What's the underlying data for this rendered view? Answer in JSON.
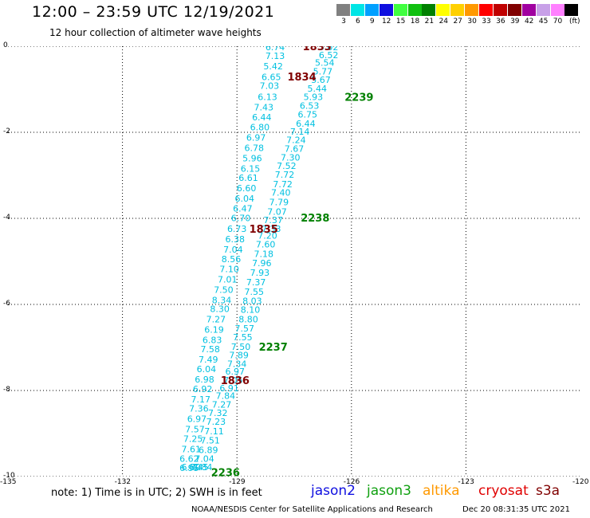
{
  "header": {
    "title": "12:00 – 23:59 UTC 12/19/2021",
    "subtitle": "12 hour collection of altimeter wave heights"
  },
  "colorbar": {
    "unit": "(ft)",
    "cells": [
      {
        "label": "3",
        "color": "#808080"
      },
      {
        "label": "6",
        "color": "#00e5e5"
      },
      {
        "label": "9",
        "color": "#00a0ff"
      },
      {
        "label": "12",
        "color": "#1010e0"
      },
      {
        "label": "15",
        "color": "#40ff40"
      },
      {
        "label": "18",
        "color": "#10c010"
      },
      {
        "label": "21",
        "color": "#008000"
      },
      {
        "label": "24",
        "color": "#ffff00"
      },
      {
        "label": "27",
        "color": "#ffd000"
      },
      {
        "label": "30",
        "color": "#ff9900"
      },
      {
        "label": "33",
        "color": "#ff0000"
      },
      {
        "label": "36",
        "color": "#c00000"
      },
      {
        "label": "39",
        "color": "#800000"
      },
      {
        "label": "42",
        "color": "#a000a0"
      },
      {
        "label": "45",
        "color": "#c8a0e8"
      },
      {
        "label": "70",
        "color": "#ff80ff"
      },
      {
        "label": "",
        "color": "#000000"
      }
    ]
  },
  "axes": {
    "x_ticks": [
      "-135",
      "-132",
      "-129",
      "-126",
      "-123",
      "-120"
    ],
    "y_ticks": [
      "0",
      "-2",
      "-4",
      "-6",
      "-8",
      "-10"
    ],
    "x_range": [
      -135,
      -120
    ],
    "y_range": [
      -10,
      0
    ]
  },
  "tracks": [
    {
      "color": "#00c0e0",
      "points": [
        {
          "x": -128.0,
          "y": -0.02,
          "label": "6.74"
        },
        {
          "x": -128.0,
          "y": -0.22,
          "label": "7.13"
        },
        {
          "x": -128.05,
          "y": -0.46,
          "label": "5.42"
        },
        {
          "x": -128.1,
          "y": -0.71,
          "label": "6.65"
        },
        {
          "x": -128.15,
          "y": -0.92,
          "label": "7.03"
        },
        {
          "x": -128.2,
          "y": -1.18,
          "label": "6.13"
        },
        {
          "x": -128.3,
          "y": -1.42,
          "label": "7.43"
        },
        {
          "x": -128.35,
          "y": -1.65,
          "label": "6.44"
        },
        {
          "x": -128.4,
          "y": -1.88,
          "label": "6.80"
        },
        {
          "x": -128.5,
          "y": -2.12,
          "label": "6.97"
        },
        {
          "x": -128.55,
          "y": -2.36,
          "label": "6.78"
        },
        {
          "x": -128.6,
          "y": -2.6,
          "label": "5.96"
        },
        {
          "x": -128.65,
          "y": -2.84,
          "label": "6.15"
        },
        {
          "x": -128.7,
          "y": -3.06,
          "label": "6.61"
        },
        {
          "x": -128.75,
          "y": -3.3,
          "label": "6.60"
        },
        {
          "x": -128.8,
          "y": -3.54,
          "label": "6.04"
        },
        {
          "x": -128.85,
          "y": -3.77,
          "label": "6.47"
        },
        {
          "x": -128.9,
          "y": -3.99,
          "label": "6.70"
        },
        {
          "x": -129.0,
          "y": -4.24,
          "label": "6.73"
        },
        {
          "x": -129.05,
          "y": -4.48,
          "label": "6.38"
        },
        {
          "x": -129.1,
          "y": -4.72,
          "label": "7.04"
        },
        {
          "x": -129.15,
          "y": -4.94,
          "label": "8.56"
        },
        {
          "x": -129.2,
          "y": -5.18,
          "label": "7.10"
        },
        {
          "x": -129.25,
          "y": -5.42,
          "label": "7.01"
        },
        {
          "x": -129.35,
          "y": -5.66,
          "label": "7.50"
        },
        {
          "x": -129.4,
          "y": -5.9,
          "label": "8.34"
        },
        {
          "x": -129.45,
          "y": -6.1,
          "label": "8.30"
        },
        {
          "x": -129.55,
          "y": -6.34,
          "label": "7.27"
        },
        {
          "x": -129.6,
          "y": -6.58,
          "label": "6.19"
        },
        {
          "x": -129.65,
          "y": -6.82,
          "label": "6.83"
        },
        {
          "x": -129.7,
          "y": -7.04,
          "label": "7.58"
        },
        {
          "x": -129.75,
          "y": -7.28,
          "label": "7.49"
        },
        {
          "x": -129.8,
          "y": -7.5,
          "label": "6.04"
        },
        {
          "x": -129.85,
          "y": -7.74,
          "label": "6.98"
        },
        {
          "x": -129.9,
          "y": -7.96,
          "label": "6.92"
        },
        {
          "x": -129.95,
          "y": -8.2,
          "label": "7.17"
        },
        {
          "x": -130.0,
          "y": -8.42,
          "label": "7.36"
        },
        {
          "x": -130.05,
          "y": -8.66,
          "label": "6.97"
        },
        {
          "x": -130.1,
          "y": -8.9,
          "label": "7.57"
        },
        {
          "x": -130.15,
          "y": -9.12,
          "label": "7.25"
        },
        {
          "x": -130.2,
          "y": -9.36,
          "label": "7.61"
        },
        {
          "x": -130.25,
          "y": -9.58,
          "label": "6.62"
        },
        {
          "x": -130.25,
          "y": -9.8,
          "label": "6.95"
        }
      ]
    },
    {
      "color": "#00c0e0",
      "points": [
        {
          "x": -126.6,
          "y": -0.02,
          "label": "5.02"
        },
        {
          "x": -126.6,
          "y": -0.2,
          "label": "6.52"
        },
        {
          "x": -126.7,
          "y": -0.38,
          "label": "5.54"
        },
        {
          "x": -126.75,
          "y": -0.58,
          "label": "5.77"
        },
        {
          "x": -126.8,
          "y": -0.78,
          "label": "5.67"
        },
        {
          "x": -126.9,
          "y": -0.98,
          "label": "5.44"
        },
        {
          "x": -127.0,
          "y": -1.18,
          "label": "5.93"
        },
        {
          "x": -127.1,
          "y": -1.38,
          "label": "6.53"
        },
        {
          "x": -127.15,
          "y": -1.58,
          "label": "6.75"
        },
        {
          "x": -127.2,
          "y": -1.8,
          "label": "6.44"
        },
        {
          "x": -127.35,
          "y": -1.98,
          "label": "7.14"
        },
        {
          "x": -127.45,
          "y": -2.18,
          "label": "7.24"
        },
        {
          "x": -127.5,
          "y": -2.38,
          "label": "7.67"
        },
        {
          "x": -127.6,
          "y": -2.58,
          "label": "7.30"
        },
        {
          "x": -127.7,
          "y": -2.78,
          "label": "7.52"
        },
        {
          "x": -127.75,
          "y": -2.98,
          "label": "7.72"
        },
        {
          "x": -127.8,
          "y": -3.2,
          "label": "7.72"
        },
        {
          "x": -127.85,
          "y": -3.4,
          "label": "7.40"
        },
        {
          "x": -127.9,
          "y": -3.62,
          "label": "7.79"
        },
        {
          "x": -127.95,
          "y": -3.84,
          "label": "7.07"
        },
        {
          "x": -128.05,
          "y": -4.04,
          "label": "7.37"
        },
        {
          "x": -128.1,
          "y": -4.24,
          "label": "7.33"
        },
        {
          "x": -128.2,
          "y": -4.4,
          "label": "7.20"
        },
        {
          "x": -128.25,
          "y": -4.6,
          "label": "7.60"
        },
        {
          "x": -128.3,
          "y": -4.82,
          "label": "7.18"
        },
        {
          "x": -128.35,
          "y": -5.04,
          "label": "7.96"
        },
        {
          "x": -128.4,
          "y": -5.26,
          "label": "7.93"
        },
        {
          "x": -128.5,
          "y": -5.48,
          "label": "7.37"
        },
        {
          "x": -128.55,
          "y": -5.7,
          "label": "7.55"
        },
        {
          "x": -128.6,
          "y": -5.92,
          "label": "8.03"
        },
        {
          "x": -128.65,
          "y": -6.12,
          "label": "8.10"
        },
        {
          "x": -128.7,
          "y": -6.34,
          "label": "8.80"
        },
        {
          "x": -128.8,
          "y": -6.56,
          "label": "7.57"
        },
        {
          "x": -128.85,
          "y": -6.76,
          "label": "7.55"
        },
        {
          "x": -128.9,
          "y": -6.98,
          "label": "7.50"
        },
        {
          "x": -128.95,
          "y": -7.18,
          "label": "7.89"
        },
        {
          "x": -129.0,
          "y": -7.38,
          "label": "7.34"
        },
        {
          "x": -129.05,
          "y": -7.56,
          "label": "6.97"
        },
        {
          "x": -129.1,
          "y": -7.76,
          "label": "7.05"
        },
        {
          "x": -129.2,
          "y": -7.94,
          "label": "6.91"
        },
        {
          "x": -129.3,
          "y": -8.12,
          "label": "7.84"
        },
        {
          "x": -129.4,
          "y": -8.32,
          "label": "7.27"
        },
        {
          "x": -129.5,
          "y": -8.52,
          "label": "7.32"
        },
        {
          "x": -129.55,
          "y": -8.72,
          "label": "7.23"
        },
        {
          "x": -129.6,
          "y": -8.94,
          "label": "7.11"
        },
        {
          "x": -129.7,
          "y": -9.16,
          "label": "7.51"
        },
        {
          "x": -129.75,
          "y": -9.38,
          "label": "6.89"
        },
        {
          "x": -129.85,
          "y": -9.58,
          "label": "7.04"
        },
        {
          "x": -129.9,
          "y": -9.78,
          "label": "7.84"
        }
      ]
    }
  ],
  "track_tail_labels": [
    {
      "x": -130.2,
      "y": -9.78,
      "label": "6.30",
      "color": "#00c0e0"
    },
    {
      "x": -130.0,
      "y": -9.78,
      "label": "6.45",
      "color": "#00c0e0"
    }
  ],
  "pass_labels": [
    {
      "text": "1833",
      "x": -126.9,
      "y": 0.0,
      "color": "#800000"
    },
    {
      "text": "1834",
      "x": -127.3,
      "y": -0.7,
      "color": "#800000"
    },
    {
      "text": "2239",
      "x": -125.8,
      "y": -1.18,
      "color": "#008000"
    },
    {
      "text": "2238",
      "x": -126.95,
      "y": -3.98,
      "color": "#008000"
    },
    {
      "text": "1835",
      "x": -128.3,
      "y": -4.24,
      "color": "#800000"
    },
    {
      "text": "2237",
      "x": -128.05,
      "y": -6.98,
      "color": "#008000"
    },
    {
      "text": "1836",
      "x": -129.05,
      "y": -7.76,
      "color": "#800000"
    },
    {
      "text": "2236",
      "x": -129.3,
      "y": -9.9,
      "color": "#008000"
    }
  ],
  "note": "note: 1) Time is in UTC; 2) SWH is in feet",
  "satellites": [
    {
      "name": "jason2",
      "color": "#1010e0"
    },
    {
      "name": "jason3",
      "color": "#10a010"
    },
    {
      "name": "altika",
      "color": "#ff9900"
    },
    {
      "name": "cryosat",
      "color": "#e00000"
    },
    {
      "name": "s3a",
      "color": "#800000"
    }
  ],
  "footer": {
    "credit": "NOAA/NESDIS Center for Satellite Applications and Research",
    "timestamp": "Dec 20 08:31:35 UTC 2021"
  }
}
